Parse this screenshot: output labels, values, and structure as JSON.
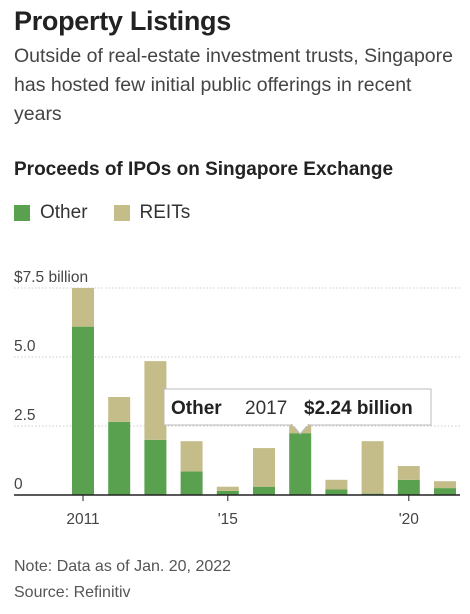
{
  "header": {
    "title": "Property Listings",
    "subtitle": "Outside of real-estate investment trusts, Singapore has hosted few initial public offerings in recent years"
  },
  "footer": {
    "note": "Note: Data as of Jan. 20, 2022",
    "source": "Source: Refinitiv"
  },
  "colors": {
    "other": "#59a14f",
    "reits": "#c4bd89",
    "axis": "#222222",
    "grid": "#cccccc"
  },
  "tooltip": {
    "series": "Other",
    "year": "2017",
    "value": "$2.24 billion"
  },
  "chart_data": {
    "type": "bar",
    "stacked": true,
    "title": "Proceeds of IPOs on Singapore Exchange",
    "xlabel": "",
    "ylabel": "",
    "ylim": [
      0,
      7.5
    ],
    "yticks": [
      {
        "value": 0,
        "label": "0"
      },
      {
        "value": 2.5,
        "label": "2.5"
      },
      {
        "value": 5.0,
        "label": "5.0"
      },
      {
        "value": 7.5,
        "label": "$7.5 billion"
      }
    ],
    "categories": [
      "2011",
      "2012",
      "2013",
      "2014",
      "2015",
      "2016",
      "2017",
      "2018",
      "2019",
      "2020",
      "2021"
    ],
    "xtick_labels": [
      {
        "category": "2011",
        "label": "2011"
      },
      {
        "category": "2015",
        "label": "'15"
      },
      {
        "category": "2020",
        "label": "'20"
      }
    ],
    "series": [
      {
        "name": "Other",
        "values": [
          6.1,
          2.65,
          2.0,
          0.85,
          0.15,
          0.3,
          2.24,
          0.2,
          0.05,
          0.55,
          0.25
        ]
      },
      {
        "name": "REITs",
        "values": [
          1.4,
          0.9,
          2.85,
          1.1,
          0.15,
          1.4,
          0.36,
          0.35,
          1.9,
          0.5,
          0.25
        ]
      }
    ],
    "grid": true,
    "legend": "top-left"
  }
}
